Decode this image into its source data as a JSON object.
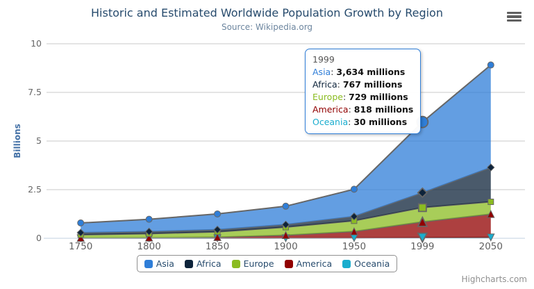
{
  "header": {
    "title": "Historic and Estimated Worldwide Population Growth by Region",
    "subtitle": "Source: Wikipedia.org"
  },
  "axes": {
    "y_title": "Billions",
    "y_ticks": [
      "0",
      "2.5",
      "5",
      "7.5",
      "10"
    ],
    "x_labels": [
      "1750",
      "1800",
      "1850",
      "1900",
      "1950",
      "1999",
      "2050"
    ]
  },
  "credits": {
    "label": "Highcharts.com"
  },
  "colors": {
    "title": "#274b6d",
    "subtitle": "#6d869f",
    "axis_label": "#606060",
    "y_axis_title": "#4572a7",
    "grid": "#c8c8c8",
    "axis_line": "#c0d0e0",
    "series_line": "#666666",
    "legend_border": "#909090",
    "legend_text": "#274b6d",
    "tooltip_border": "#2f7ed8",
    "credits": "#909090",
    "menu_icon": "#606060"
  },
  "chart_data": {
    "type": "area",
    "stacking": "normal",
    "title": "Historic and Estimated Worldwide Population Growth by Region",
    "subtitle": "Source: Wikipedia.org",
    "xlabel": "",
    "ylabel": "Billions",
    "units": "millions",
    "categories": [
      "1750",
      "1800",
      "1850",
      "1900",
      "1950",
      "1999",
      "2050"
    ],
    "series": [
      {
        "name": "Asia",
        "color": "#2f7ed8",
        "marker": "circle",
        "data": [
          502,
          635,
          809,
          947,
          1402,
          3634,
          5268
        ]
      },
      {
        "name": "Africa",
        "color": "#0d233a",
        "marker": "diamond",
        "data": [
          106,
          107,
          111,
          133,
          221,
          767,
          1766
        ]
      },
      {
        "name": "Europe",
        "color": "#8bbc21",
        "marker": "square",
        "data": [
          163,
          203,
          276,
          408,
          547,
          729,
          628
        ]
      },
      {
        "name": "America",
        "color": "#910000",
        "marker": "triangle",
        "data": [
          18,
          31,
          54,
          156,
          339,
          818,
          1201
        ]
      },
      {
        "name": "Oceania",
        "color": "#1aadce",
        "marker": "triangle-down",
        "data": [
          2,
          2,
          2,
          6,
          13,
          30,
          46
        ]
      }
    ],
    "stack_order_bottom_to_top": [
      "Oceania",
      "America",
      "Europe",
      "Africa",
      "Asia"
    ],
    "ylim": [
      0,
      10
    ],
    "yticks": [
      0,
      2.5,
      5,
      7.5,
      10
    ],
    "grid": true,
    "legend_position": "bottom",
    "hovered_category": "1999",
    "fill_opacity": 0.75
  },
  "tooltip": {
    "header": "1999",
    "rows": [
      {
        "series": "Asia",
        "value": "3,634 millions"
      },
      {
        "series": "Africa",
        "value": "767 millions"
      },
      {
        "series": "Europe",
        "value": "729 millions"
      },
      {
        "series": "America",
        "value": "818 millions"
      },
      {
        "series": "Oceania",
        "value": "30 millions"
      }
    ]
  },
  "legend": {
    "items": [
      "Asia",
      "Africa",
      "Europe",
      "America",
      "Oceania"
    ]
  }
}
